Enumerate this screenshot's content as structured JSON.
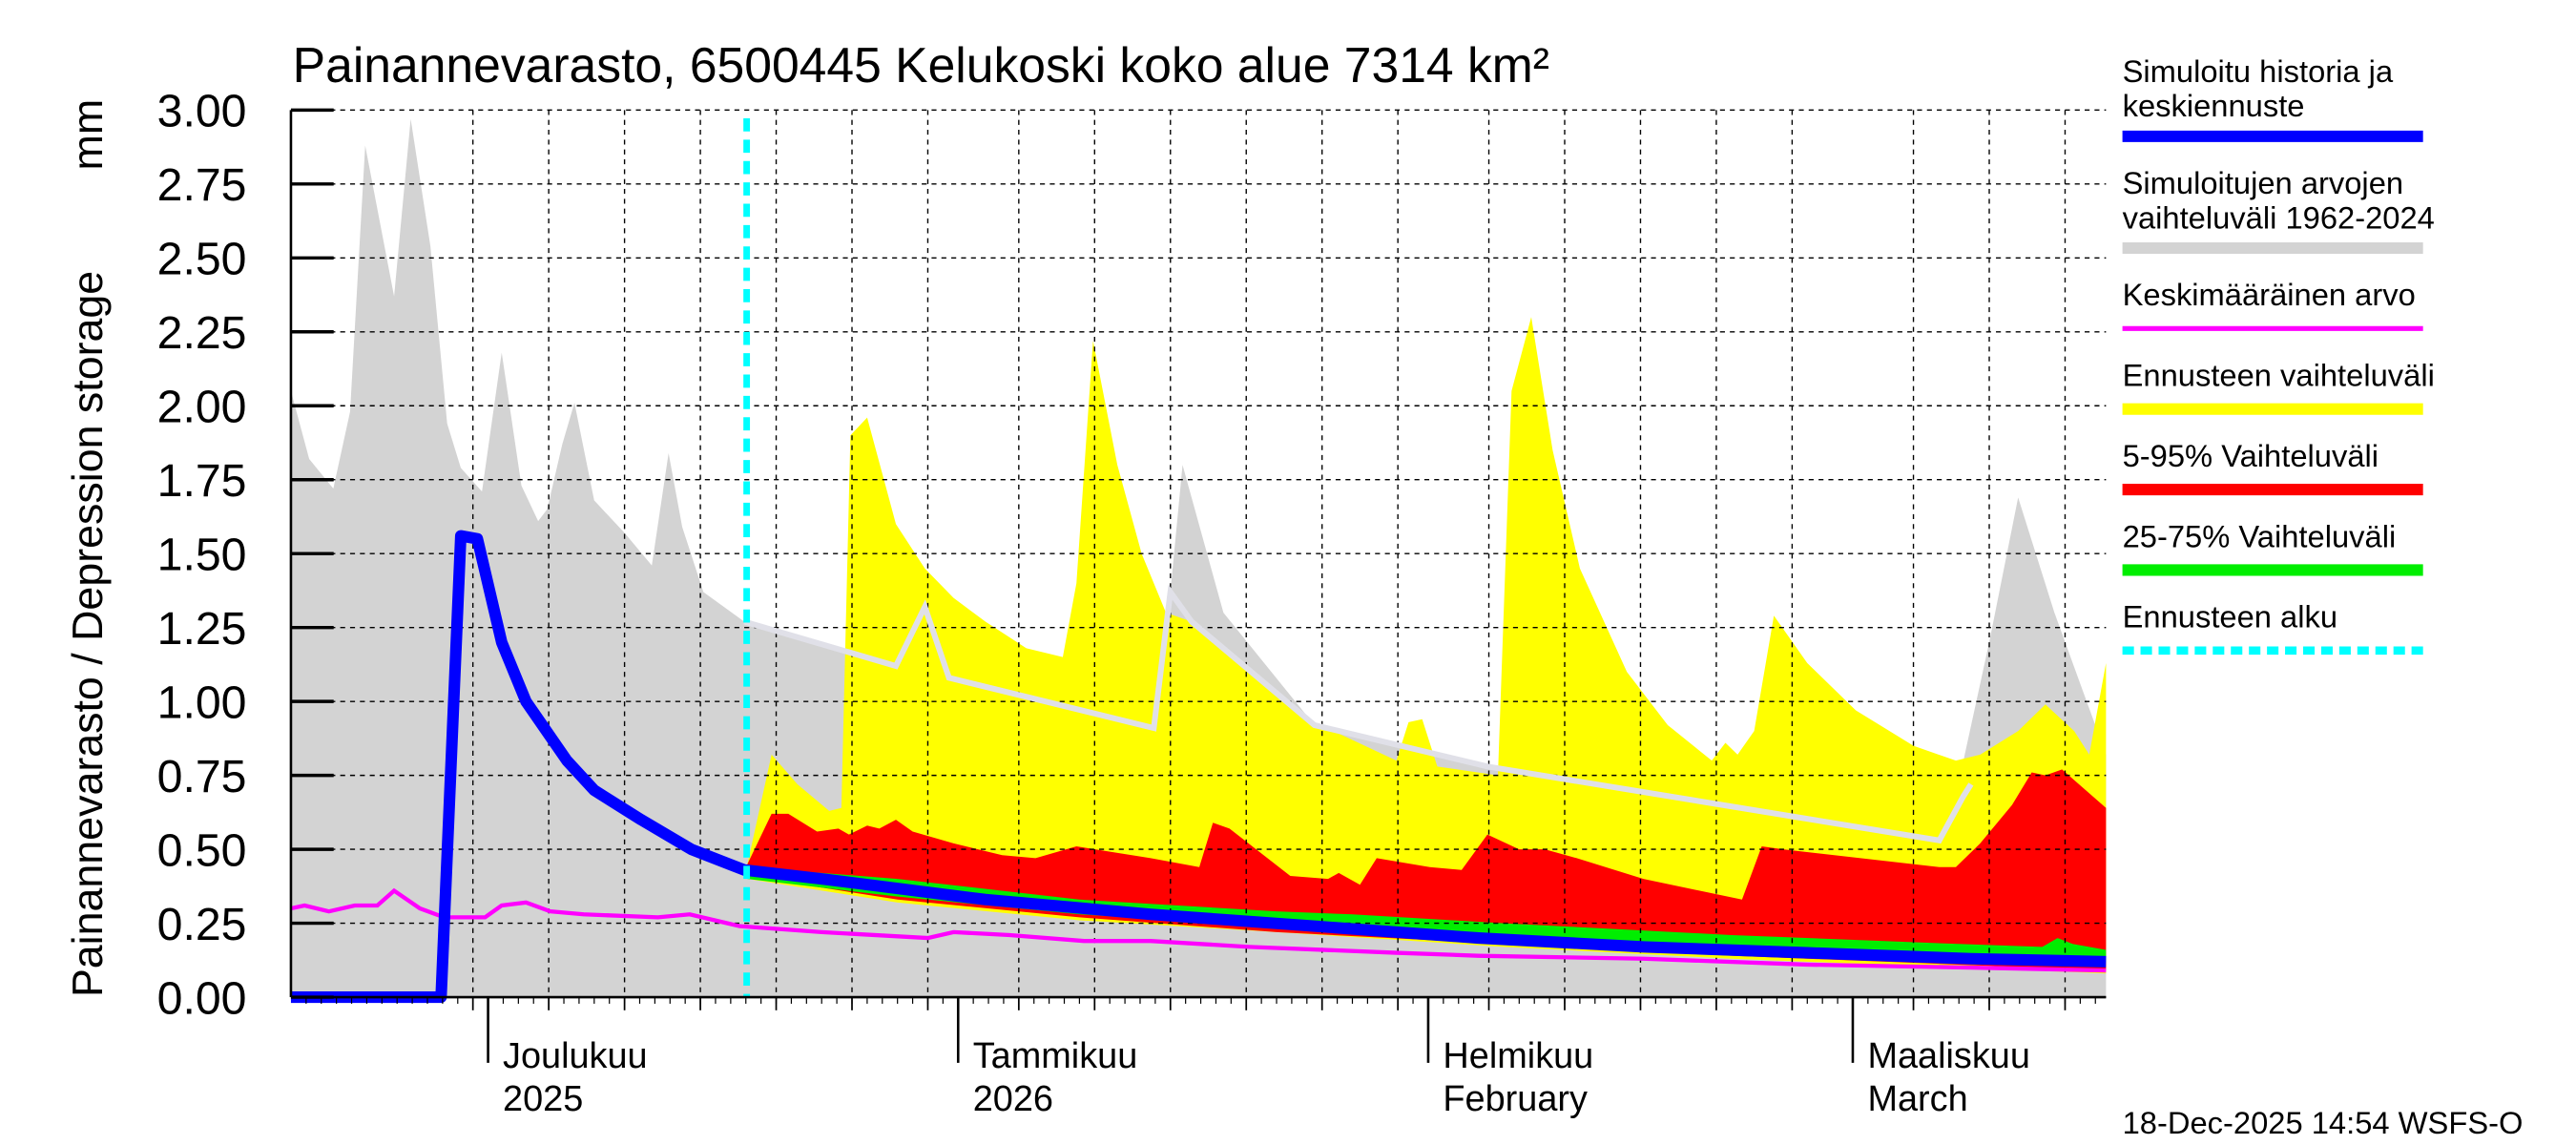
{
  "chart_data": {
    "type": "area",
    "title": "Painannevarasto, 6500445 Kelukoski koko alue 7314 km²",
    "ylabel": "Painannevarasto / Depression storage",
    "yunit": "mm",
    "ylim": [
      0,
      3.0
    ],
    "yticks": [
      "0.00",
      "0.25",
      "0.50",
      "0.75",
      "1.00",
      "1.25",
      "1.50",
      "1.75",
      "2.00",
      "2.25",
      "2.50",
      "2.75",
      "3.00"
    ],
    "x_units": "days since 2025-11-18",
    "xlim": [
      0,
      119.7
    ],
    "forecast_start_day": 30,
    "month_ticks": [
      {
        "day": 13,
        "line1": "Joulukuu",
        "line2": "2025"
      },
      {
        "day": 44,
        "line1": "Tammikuu",
        "line2": "2026"
      },
      {
        "day": 75,
        "line1": "Helmikuu",
        "line2": "February"
      },
      {
        "day": 103,
        "line1": "Maaliskuu",
        "line2": "March"
      }
    ],
    "grid_days": [
      12,
      17,
      22,
      27,
      32,
      37,
      42,
      48,
      53,
      58,
      63,
      68,
      73,
      79,
      84,
      89,
      94,
      99,
      107,
      112,
      117
    ],
    "series": {
      "hist_range_upper": [
        [
          0,
          2.05
        ],
        [
          1.2,
          1.82
        ],
        [
          2.8,
          1.72
        ],
        [
          3.9,
          1.98
        ],
        [
          4.9,
          2.88
        ],
        [
          6.8,
          2.37
        ],
        [
          7.9,
          2.97
        ],
        [
          9.2,
          2.54
        ],
        [
          10.3,
          1.94
        ],
        [
          11.2,
          1.79
        ],
        [
          12.6,
          1.71
        ],
        [
          13.9,
          2.18
        ],
        [
          15.2,
          1.73
        ],
        [
          16.3,
          1.61
        ],
        [
          16.9,
          1.65
        ],
        [
          17.9,
          1.87
        ],
        [
          18.7,
          2.01
        ],
        [
          20,
          1.68
        ],
        [
          22,
          1.57
        ],
        [
          23.8,
          1.46
        ],
        [
          24.9,
          1.84
        ],
        [
          25.8,
          1.59
        ],
        [
          27.2,
          1.37
        ],
        [
          29.9,
          1.27
        ],
        [
          39.9,
          1.12
        ],
        [
          41.8,
          1.32
        ],
        [
          43.4,
          1.08
        ],
        [
          56.9,
          0.91
        ],
        [
          58,
          1.37
        ],
        [
          58.8,
          1.8
        ],
        [
          61.5,
          1.3
        ],
        [
          67.5,
          0.92
        ],
        [
          78.9,
          0.78
        ],
        [
          108.7,
          0.53
        ],
        [
          110.3,
          0.8
        ],
        [
          112,
          1.2
        ],
        [
          113.9,
          1.69
        ],
        [
          116.3,
          1.3
        ],
        [
          119.7,
          0.82
        ]
      ],
      "hist_line": [
        [
          29.9,
          1.27
        ],
        [
          39.9,
          1.12
        ],
        [
          41.8,
          1.32
        ],
        [
          43.4,
          1.08
        ],
        [
          56.9,
          0.91
        ],
        [
          58,
          1.37
        ],
        [
          59.4,
          1.27
        ],
        [
          67.5,
          0.92
        ],
        [
          78.9,
          0.78
        ],
        [
          108.7,
          0.53
        ],
        [
          110.3,
          0.68
        ],
        [
          110.8,
          0.72
        ]
      ],
      "forecast_range_upper": [
        [
          30.1,
          0.45
        ],
        [
          31.7,
          0.82
        ],
        [
          33.4,
          0.72
        ],
        [
          35.5,
          0.63
        ],
        [
          36.3,
          0.64
        ],
        [
          36.9,
          1.9
        ],
        [
          38,
          1.96
        ],
        [
          39.9,
          1.6
        ],
        [
          41.8,
          1.45
        ],
        [
          43.7,
          1.35
        ],
        [
          45.8,
          1.27
        ],
        [
          48.5,
          1.18
        ],
        [
          50.9,
          1.15
        ],
        [
          51.8,
          1.4
        ],
        [
          52.9,
          2.22
        ],
        [
          54.5,
          1.8
        ],
        [
          56.1,
          1.5
        ],
        [
          57.7,
          1.3
        ],
        [
          59.4,
          1.27
        ],
        [
          63.2,
          1.1
        ],
        [
          67.5,
          0.93
        ],
        [
          72.9,
          0.8
        ],
        [
          73.7,
          0.93
        ],
        [
          74.6,
          0.94
        ],
        [
          75.6,
          0.78
        ],
        [
          79.6,
          0.75
        ],
        [
          80.5,
          2.05
        ],
        [
          81.8,
          2.3
        ],
        [
          83.2,
          1.85
        ],
        [
          85,
          1.45
        ],
        [
          88.1,
          1.1
        ],
        [
          90.8,
          0.92
        ],
        [
          93.7,
          0.8
        ],
        [
          94.6,
          0.86
        ],
        [
          95.4,
          0.82
        ],
        [
          96.5,
          0.9
        ],
        [
          97.8,
          1.29
        ],
        [
          100,
          1.13
        ],
        [
          103.2,
          0.97
        ],
        [
          107,
          0.85
        ],
        [
          109.8,
          0.8
        ],
        [
          111.4,
          0.82
        ],
        [
          113.9,
          0.9
        ],
        [
          115.7,
          0.99
        ],
        [
          117.6,
          0.9
        ],
        [
          118.6,
          0.82
        ],
        [
          119.7,
          1.13
        ]
      ],
      "forecast_range_lower": [
        [
          30.1,
          0.4
        ],
        [
          40,
          0.32
        ],
        [
          52,
          0.26
        ],
        [
          65,
          0.22
        ],
        [
          80,
          0.17
        ],
        [
          95,
          0.13
        ],
        [
          110,
          0.1
        ],
        [
          119.7,
          0.08
        ]
      ],
      "p5_95_upper": [
        [
          30.1,
          0.45
        ],
        [
          31.7,
          0.62
        ],
        [
          32.8,
          0.62
        ],
        [
          34.7,
          0.56
        ],
        [
          36.1,
          0.57
        ],
        [
          36.8,
          0.55
        ],
        [
          38,
          0.58
        ],
        [
          38.8,
          0.57
        ],
        [
          39.9,
          0.6
        ],
        [
          41,
          0.56
        ],
        [
          43.7,
          0.52
        ],
        [
          46.9,
          0.48
        ],
        [
          49.1,
          0.47
        ],
        [
          51.8,
          0.51
        ],
        [
          56.7,
          0.47
        ],
        [
          59.9,
          0.44
        ],
        [
          60.8,
          0.59
        ],
        [
          61.9,
          0.57
        ],
        [
          65.9,
          0.41
        ],
        [
          68.4,
          0.4
        ],
        [
          69.1,
          0.42
        ],
        [
          70.5,
          0.38
        ],
        [
          71.6,
          0.47
        ],
        [
          75.1,
          0.44
        ],
        [
          77.2,
          0.43
        ],
        [
          78.9,
          0.55
        ],
        [
          81,
          0.5
        ],
        [
          82.7,
          0.5
        ],
        [
          84.8,
          0.47
        ],
        [
          89.2,
          0.4
        ],
        [
          95.7,
          0.33
        ],
        [
          97,
          0.51
        ],
        [
          98.4,
          0.5
        ],
        [
          108.7,
          0.44
        ],
        [
          109.8,
          0.44
        ],
        [
          111.4,
          0.52
        ],
        [
          113.5,
          0.65
        ],
        [
          114.8,
          0.76
        ],
        [
          115.7,
          0.75
        ],
        [
          116.8,
          0.77
        ],
        [
          119.7,
          0.64
        ]
      ],
      "p5_95_lower": [
        [
          30.1,
          0.41
        ],
        [
          40,
          0.33
        ],
        [
          52,
          0.27
        ],
        [
          65,
          0.22
        ],
        [
          80,
          0.18
        ],
        [
          95,
          0.14
        ],
        [
          110,
          0.11
        ],
        [
          119.7,
          0.09
        ]
      ],
      "p25_75_upper": [
        [
          30.1,
          0.44
        ],
        [
          40,
          0.4
        ],
        [
          52,
          0.33
        ],
        [
          65,
          0.29
        ],
        [
          70,
          0.28
        ],
        [
          80,
          0.25
        ],
        [
          95,
          0.21
        ],
        [
          110,
          0.18
        ],
        [
          115.5,
          0.17
        ],
        [
          116.5,
          0.2
        ],
        [
          117.5,
          0.18
        ],
        [
          119.7,
          0.16
        ]
      ],
      "p25_75_lower": [
        [
          30.1,
          0.4
        ],
        [
          40,
          0.34
        ],
        [
          52,
          0.28
        ],
        [
          65,
          0.24
        ],
        [
          80,
          0.19
        ],
        [
          95,
          0.16
        ],
        [
          110,
          0.13
        ],
        [
          119.7,
          0.12
        ]
      ],
      "simulated": [
        [
          0,
          0
        ],
        [
          9.9,
          0
        ],
        [
          11.2,
          1.56
        ],
        [
          12.3,
          1.55
        ],
        [
          13.9,
          1.2
        ],
        [
          15.5,
          1.0
        ],
        [
          18.2,
          0.8
        ],
        [
          20,
          0.7
        ],
        [
          23.1,
          0.6
        ],
        [
          26.4,
          0.5
        ],
        [
          29.9,
          0.43
        ],
        [
          35,
          0.4
        ],
        [
          45.8,
          0.33
        ],
        [
          56.7,
          0.28
        ],
        [
          67.5,
          0.24
        ],
        [
          78.3,
          0.2
        ],
        [
          89.2,
          0.17
        ],
        [
          100,
          0.15
        ],
        [
          110.8,
          0.13
        ],
        [
          119.7,
          0.12
        ]
      ],
      "mean": [
        [
          0,
          0.3
        ],
        [
          0.9,
          0.31
        ],
        [
          2.5,
          0.29
        ],
        [
          4.2,
          0.31
        ],
        [
          5.7,
          0.31
        ],
        [
          6.8,
          0.36
        ],
        [
          8.5,
          0.3
        ],
        [
          10.1,
          0.27
        ],
        [
          12.8,
          0.27
        ],
        [
          13.9,
          0.31
        ],
        [
          15.5,
          0.32
        ],
        [
          17.1,
          0.29
        ],
        [
          19.3,
          0.28
        ],
        [
          24.2,
          0.27
        ],
        [
          26.3,
          0.28
        ],
        [
          29.6,
          0.24
        ],
        [
          35,
          0.22
        ],
        [
          42,
          0.2
        ],
        [
          43.7,
          0.22
        ],
        [
          47.4,
          0.21
        ],
        [
          52.3,
          0.19
        ],
        [
          56.7,
          0.19
        ],
        [
          63.2,
          0.17
        ],
        [
          72.9,
          0.15
        ],
        [
          78.3,
          0.14
        ],
        [
          89.2,
          0.13
        ],
        [
          100,
          0.11
        ],
        [
          110.8,
          0.1
        ],
        [
          119.7,
          0.09
        ]
      ]
    },
    "colors": {
      "simulated": "#0000ff",
      "hist_range": "#d3d3d3",
      "hist_line": "#e0e0e8",
      "mean": "#ff00ff",
      "forecast_range": "#ffff00",
      "p5_95": "#ff0000",
      "p25_75": "#00ee00",
      "forecast_start": "#00ffff"
    },
    "legend": [
      {
        "line1": "Simuloitu historia ja",
        "line2": "keskiennuste",
        "color": "#0000ff",
        "style": "thick"
      },
      {
        "line1": "Simuloitujen arvojen",
        "line2": "vaihteluväli 1962-2024",
        "color": "#d3d3d3",
        "style": "thick"
      },
      {
        "line1": "Keskimääräinen arvo",
        "line2": "",
        "color": "#ff00ff",
        "style": "thin"
      },
      {
        "line1": "Ennusteen vaihteluväli",
        "line2": "",
        "color": "#ffff00",
        "style": "thick"
      },
      {
        "line1": "5-95% Vaihteluväli",
        "line2": "",
        "color": "#ff0000",
        "style": "thick"
      },
      {
        "line1": "25-75% Vaihteluväli",
        "line2": "",
        "color": "#00ee00",
        "style": "thick"
      },
      {
        "line1": "Ennusteen alku",
        "line2": "",
        "color": "#00ffff",
        "style": "dashed"
      }
    ],
    "legend_placement": "right",
    "footer": "18-Dec-2025 14:54 WSFS-O"
  }
}
